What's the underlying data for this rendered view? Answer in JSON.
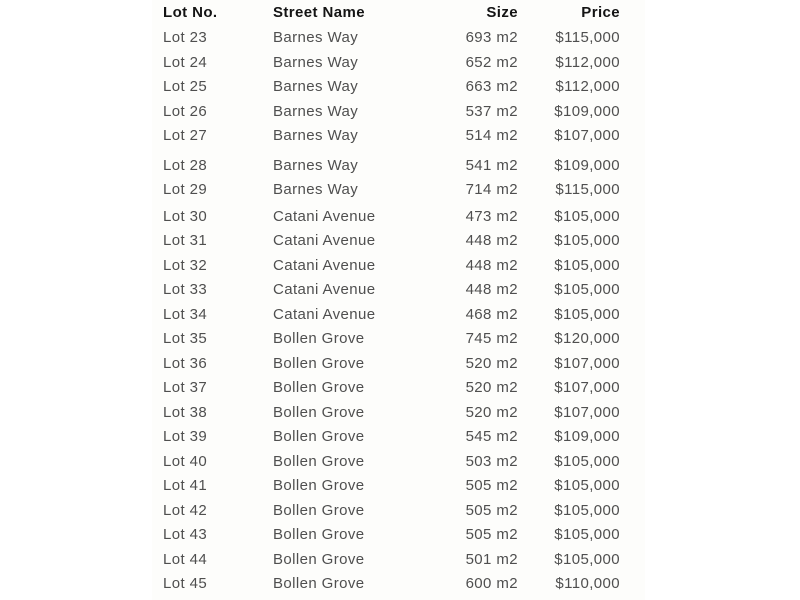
{
  "colors": {
    "page_background": "#ffffff",
    "panel_background": "#fdfdfb",
    "header_text": "#141414",
    "body_text": "#4f4f4f"
  },
  "table": {
    "columns": [
      {
        "key": "lot",
        "label": "Lot No.",
        "align": "left"
      },
      {
        "key": "street",
        "label": "Street Name",
        "align": "left"
      },
      {
        "key": "size",
        "label": "Size",
        "align": "right"
      },
      {
        "key": "price",
        "label": "Price",
        "align": "right"
      }
    ],
    "rows": [
      {
        "lot": "Lot 23",
        "street": "Barnes Way",
        "size": "693 m2",
        "price": "$115,000"
      },
      {
        "lot": "Lot 24",
        "street": "Barnes Way",
        "size": "652 m2",
        "price": "$112,000"
      },
      {
        "lot": "Lot 25",
        "street": "Barnes Way",
        "size": "663 m2",
        "price": "$112,000"
      },
      {
        "lot": "Lot 26",
        "street": "Barnes Way",
        "size": "537 m2",
        "price": "$109,000"
      },
      {
        "lot": "Lot 27",
        "street": "Barnes Way",
        "size": "514 m2",
        "price": "$107,000"
      },
      {
        "lot": "Lot 28",
        "street": "Barnes Way",
        "size": "541 m2",
        "price": "$109,000"
      },
      {
        "lot": "Lot 29",
        "street": "Barnes Way",
        "size": "714 m2",
        "price": "$115,000"
      },
      {
        "lot": "Lot 30",
        "street": "Catani Avenue",
        "size": "473 m2",
        "price": "$105,000"
      },
      {
        "lot": "Lot 31",
        "street": "Catani Avenue",
        "size": "448 m2",
        "price": "$105,000"
      },
      {
        "lot": "Lot 32",
        "street": "Catani Avenue",
        "size": "448 m2",
        "price": "$105,000"
      },
      {
        "lot": "Lot 33",
        "street": "Catani Avenue",
        "size": "448 m2",
        "price": "$105,000"
      },
      {
        "lot": "Lot 34",
        "street": "Catani Avenue",
        "size": "468 m2",
        "price": "$105,000"
      },
      {
        "lot": "Lot 35",
        "street": "Bollen Grove",
        "size": "745 m2",
        "price": "$120,000"
      },
      {
        "lot": "Lot 36",
        "street": "Bollen Grove",
        "size": "520 m2",
        "price": "$107,000"
      },
      {
        "lot": "Lot 37",
        "street": "Bollen Grove",
        "size": "520 m2",
        "price": "$107,000"
      },
      {
        "lot": "Lot 38",
        "street": "Bollen Grove",
        "size": "520 m2",
        "price": "$107,000"
      },
      {
        "lot": "Lot 39",
        "street": "Bollen Grove",
        "size": "545 m2",
        "price": "$109,000"
      },
      {
        "lot": "Lot 40",
        "street": "Bollen Grove",
        "size": "503 m2",
        "price": "$105,000"
      },
      {
        "lot": "Lot 41",
        "street": "Bollen Grove",
        "size": "505 m2",
        "price": "$105,000"
      },
      {
        "lot": "Lot 42",
        "street": "Bollen Grove",
        "size": "505 m2",
        "price": "$105,000"
      },
      {
        "lot": "Lot 43",
        "street": "Bollen Grove",
        "size": "505 m2",
        "price": "$105,000"
      },
      {
        "lot": "Lot 44",
        "street": "Bollen Grove",
        "size": "501 m2",
        "price": "$105,000"
      },
      {
        "lot": "Lot 45",
        "street": "Bollen Grove",
        "size": "600 m2",
        "price": "$110,000"
      }
    ]
  }
}
